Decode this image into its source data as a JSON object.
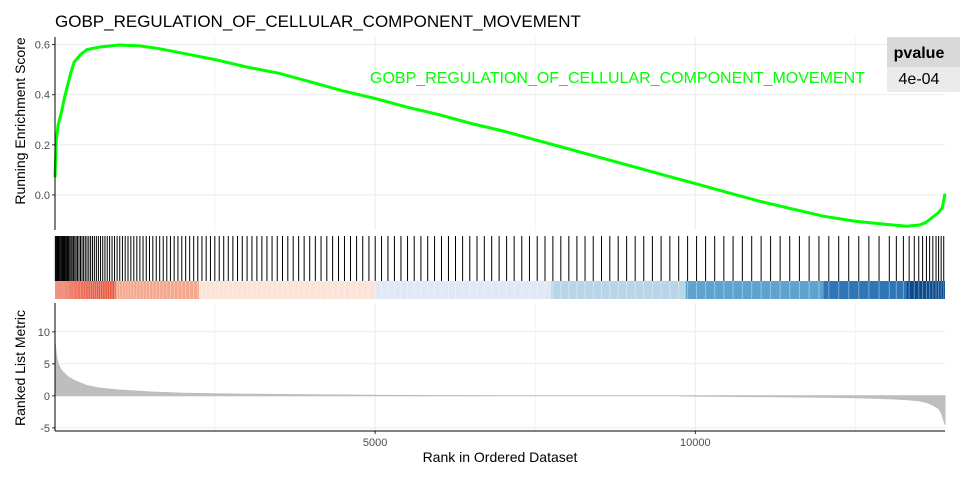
{
  "chart_data": {
    "type": "line",
    "title": "GOBP_REGULATION_OF_CELLULAR_COMPONENT_MOVEMENT",
    "xlabel": "Rank in Ordered Dataset",
    "xlim": [
      0,
      13900
    ],
    "x_ticks": [
      "5000",
      "10000"
    ],
    "x_tick_values": [
      5000,
      10000
    ],
    "grid": true,
    "colors": {
      "es_line": "#00ff00",
      "metric_fill": "#bebebe",
      "hits": "#000000",
      "table_head": "#d9d9d9",
      "table_cell": "#ebebeb"
    },
    "enrichment_panel": {
      "ylabel": "Running Enrichment Score",
      "ylim": [
        -0.14,
        0.63
      ],
      "y_ticks": [
        "0.0",
        "0.2",
        "0.4",
        "0.6"
      ],
      "y_tick_values": [
        0.0,
        0.2,
        0.4,
        0.6
      ],
      "series": [
        {
          "name": "GOBP_REGULATION_OF_CELLULAR_COMPONENT_MOVEMENT",
          "x": [
            0,
            20,
            50,
            100,
            150,
            200,
            250,
            300,
            400,
            500,
            700,
            1000,
            1300,
            1600,
            2000,
            2500,
            3000,
            3500,
            4000,
            4500,
            5000,
            5500,
            6000,
            6500,
            7000,
            7500,
            8000,
            8500,
            9000,
            9500,
            10000,
            10500,
            11000,
            11500,
            12000,
            12500,
            13000,
            13300,
            13500,
            13600,
            13700,
            13800,
            13860,
            13900
          ],
          "y": [
            0.07,
            0.22,
            0.28,
            0.33,
            0.39,
            0.44,
            0.49,
            0.53,
            0.56,
            0.58,
            0.59,
            0.598,
            0.595,
            0.585,
            0.565,
            0.54,
            0.51,
            0.485,
            0.45,
            0.415,
            0.385,
            0.35,
            0.32,
            0.285,
            0.255,
            0.22,
            0.185,
            0.15,
            0.115,
            0.08,
            0.045,
            0.01,
            -0.025,
            -0.055,
            -0.085,
            -0.105,
            -0.118,
            -0.125,
            -0.12,
            -0.11,
            -0.09,
            -0.07,
            -0.05,
            0.005
          ]
        }
      ]
    },
    "hits_panel": {
      "hit_positions": [
        5,
        18,
        32,
        47,
        60,
        75,
        90,
        104,
        118,
        133,
        148,
        162,
        178,
        195,
        212,
        230,
        249,
        268,
        288,
        309,
        330,
        352,
        375,
        398,
        422,
        447,
        473,
        500,
        528,
        556,
        585,
        615,
        646,
        678,
        711,
        745,
        780,
        816,
        853,
        891,
        930,
        970,
        1011,
        1053,
        1096,
        1140,
        1185,
        1231,
        1278,
        1326,
        1375,
        1425,
        1476,
        1528,
        1581,
        1635,
        1690,
        1746,
        1803,
        1861,
        1920,
        1980,
        2041,
        2103,
        2166,
        2230,
        2295,
        2361,
        2428,
        2496,
        2565,
        2635,
        2706,
        2778,
        2851,
        2925,
        3000,
        3076,
        3153,
        3231,
        3310,
        3390,
        3471,
        3553,
        3636,
        3720,
        3805,
        3891,
        3978,
        4066,
        4155,
        4245,
        4336,
        4428,
        4521,
        4615,
        4710,
        4806,
        4903,
        5001,
        5100,
        5200,
        5301,
        5403,
        5506,
        5610,
        5715,
        5821,
        5928,
        6036,
        6145,
        6255,
        6366,
        6478,
        6591,
        6705,
        6820,
        6936,
        7053,
        7171,
        7290,
        7410,
        7531,
        7653,
        7776,
        7900,
        8025,
        8151,
        8278,
        8406,
        8535,
        8665,
        8796,
        8928,
        9061,
        9195,
        9330,
        9466,
        9603,
        9741,
        9880,
        10020,
        10161,
        10303,
        10446,
        10590,
        10735,
        10881,
        11028,
        11176,
        11325,
        11475,
        11626,
        11778,
        11931,
        12085,
        12240,
        12396,
        12553,
        12711,
        12870,
        13030,
        13140,
        13250,
        13340,
        13420,
        13490,
        13550,
        13610,
        13660,
        13710,
        13760,
        13800,
        13840,
        13880
      ]
    },
    "rank_colorbar": {
      "segments": [
        {
          "from": 0,
          "to": 950,
          "color": "#e8553b"
        },
        {
          "from": 950,
          "to": 2250,
          "color": "#f4a68c"
        },
        {
          "from": 2250,
          "to": 5000,
          "color": "#fbe3d8"
        },
        {
          "from": 5000,
          "to": 7750,
          "color": "#dfe8f5"
        },
        {
          "from": 7750,
          "to": 9850,
          "color": "#b9d5e8"
        },
        {
          "from": 9850,
          "to": 12000,
          "color": "#5ea2cf"
        },
        {
          "from": 12000,
          "to": 13300,
          "color": "#2f76b6"
        },
        {
          "from": 13300,
          "to": 13900,
          "color": "#0c4a8f"
        }
      ]
    },
    "metric_panel": {
      "ylabel": "Ranked List Metric",
      "ylim": [
        -5.5,
        14.5
      ],
      "y_ticks": [
        "-5",
        "0",
        "5",
        "10"
      ],
      "y_tick_values": [
        -5,
        0,
        5,
        10
      ],
      "x": [
        0,
        20,
        50,
        100,
        200,
        300,
        500,
        700,
        1000,
        1500,
        2000,
        3000,
        4000,
        5000,
        6000,
        7000,
        8000,
        8900,
        9000,
        9700,
        9750,
        10000,
        11000,
        12000,
        12500,
        13000,
        13300,
        13500,
        13600,
        13700,
        13800,
        13850,
        13900
      ],
      "values": [
        8.5,
        6.5,
        5.0,
        4.0,
        3.0,
        2.4,
        1.6,
        1.2,
        0.9,
        0.6,
        0.4,
        0.25,
        0.15,
        0.08,
        0.04,
        0.02,
        0.01,
        0.0,
        0.0,
        0.0,
        -0.02,
        -0.05,
        -0.12,
        -0.22,
        -0.3,
        -0.45,
        -0.6,
        -0.8,
        -1.0,
        -1.4,
        -2.0,
        -2.8,
        -4.5
      ]
    },
    "pvalue_table": {
      "header": "pvalue",
      "value": "4e-04"
    }
  }
}
